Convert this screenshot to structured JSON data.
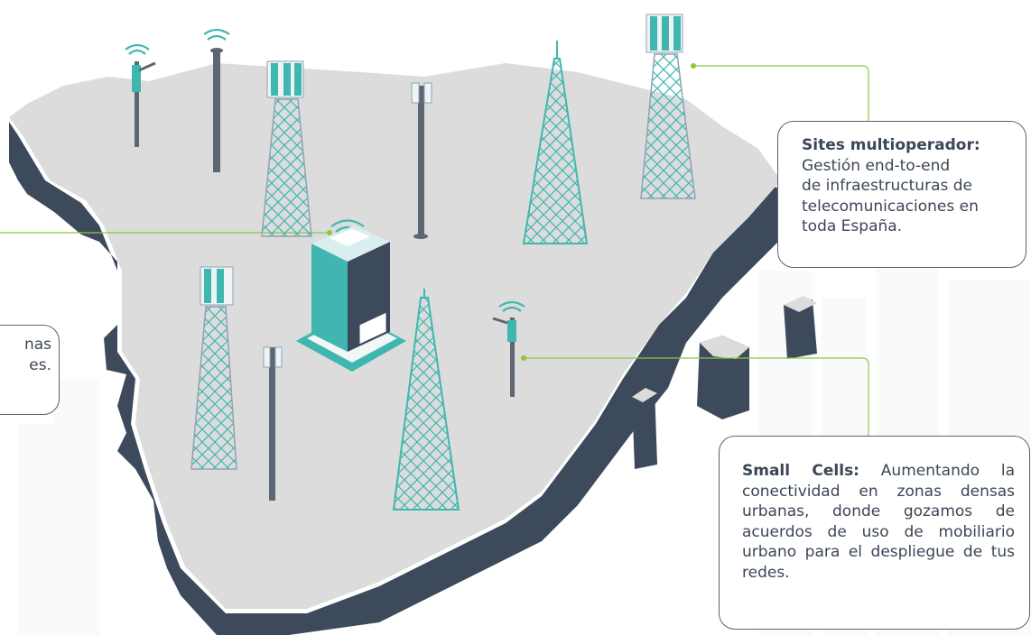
{
  "callouts": {
    "sites": {
      "title": "Sites multioperador:",
      "line1": "Gestión end-to-end",
      "line2": "de infraestructuras de",
      "line3": "telecomunicaciones en",
      "line4": "toda España."
    },
    "small_cells": {
      "title": "Small Cells:",
      "body": "Aumentando la conectividad en zonas densas urbanas, donde gozamos de acuerdos de uso de mobiliario urbano para el despliegue de tus redes."
    },
    "left_partial": {
      "line1": "nas",
      "line2": "es."
    }
  },
  "colors": {
    "map_top": "#dcdcdc",
    "map_side": "#3d4a5c",
    "tower_teal": "#3fb7b0",
    "connector": "#8dc63f",
    "border": "#5a6270"
  },
  "icons": [
    "cell-tower-icon",
    "lattice-tower-icon",
    "small-cell-pole-icon",
    "datacenter-building-icon",
    "wifi-signal-icon"
  ]
}
